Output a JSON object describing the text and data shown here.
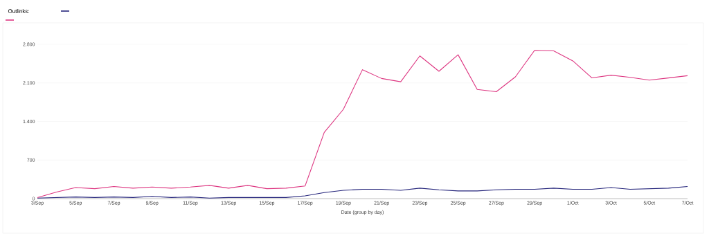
{
  "chart_data": {
    "type": "line",
    "legend_title": "Outlinks:",
    "xlabel": "Date (group by day)",
    "categories": [
      "3/Sep",
      null,
      "5/Sep",
      null,
      "7/Sep",
      null,
      "9/Sep",
      null,
      "11/Sep",
      null,
      "13/Sep",
      null,
      "15/Sep",
      null,
      "17/Sep",
      null,
      "19/Sep",
      null,
      "21/Sep",
      null,
      "23/Sep",
      null,
      "25/Sep",
      null,
      "27/Sep",
      null,
      "29/Sep",
      null,
      "1/Oct",
      null,
      "3/Oct",
      null,
      "5/Oct",
      null,
      "7/Oct"
    ],
    "series": [
      {
        "color": "#23237a",
        "values": [
          10,
          20,
          30,
          20,
          30,
          20,
          40,
          20,
          30,
          10,
          20,
          20,
          20,
          20,
          50,
          110,
          150,
          170,
          170,
          150,
          190,
          160,
          140,
          140,
          160,
          170,
          170,
          190,
          170,
          170,
          200,
          170,
          180,
          190,
          220
        ]
      },
      {
        "color": "#dd3580",
        "values": [
          20,
          120,
          200,
          180,
          220,
          190,
          210,
          190,
          210,
          240,
          190,
          240,
          180,
          190,
          230,
          1200,
          1620,
          2340,
          2180,
          2120,
          2590,
          2310,
          2610,
          1980,
          1940,
          2210,
          2690,
          2680,
          2500,
          2190,
          2240,
          2200,
          2150,
          2190,
          2230
        ]
      }
    ],
    "ylim": [
      0,
      2800
    ],
    "yticks": [
      {
        "value": 0,
        "label": "0"
      },
      {
        "value": 700,
        "label": "700"
      },
      {
        "value": 1400,
        "label": "1.400"
      },
      {
        "value": 2100,
        "label": "2.100"
      },
      {
        "value": 2800,
        "label": "2.800"
      }
    ],
    "grid": "y",
    "marker": "none",
    "line_style": "solid"
  }
}
